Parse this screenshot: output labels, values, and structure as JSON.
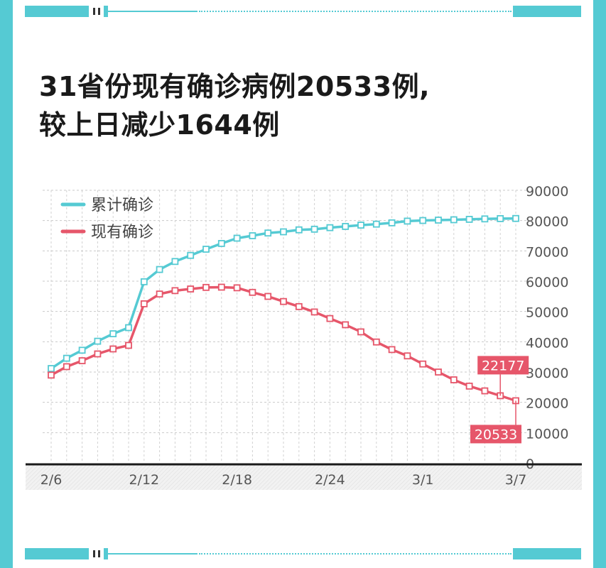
{
  "title": {
    "line1": "31省份现有确诊病例20533例,",
    "line2": "较上日减少1644例"
  },
  "colors": {
    "accent": "#55cad3",
    "cumulative": "#55cad3",
    "current": "#e6566a",
    "axis": "#1a1a1a"
  },
  "chart_data": {
    "type": "line",
    "x": [
      "2/6",
      "2/7",
      "2/8",
      "2/9",
      "2/10",
      "2/11",
      "2/12",
      "2/13",
      "2/14",
      "2/15",
      "2/16",
      "2/17",
      "2/18",
      "2/19",
      "2/20",
      "2/21",
      "2/22",
      "2/23",
      "2/24",
      "2/25",
      "2/26",
      "2/27",
      "2/28",
      "2/29",
      "3/1",
      "3/2",
      "3/3",
      "3/4",
      "3/5",
      "3/6",
      "3/7"
    ],
    "x_tick_labels": [
      "2/6",
      "2/12",
      "2/18",
      "2/24",
      "3/1",
      "3/7"
    ],
    "y_tick_labels": [
      "0",
      "10000",
      "20000",
      "30000",
      "40000",
      "50000",
      "60000",
      "70000",
      "80000",
      "90000"
    ],
    "ylim": [
      0,
      90000
    ],
    "grid": true,
    "legend_position": "top-left",
    "series": [
      {
        "name": "累计确诊",
        "color": "#55cad3",
        "values": [
          31161,
          34546,
          37198,
          40171,
          42638,
          44653,
          59804,
          63851,
          66492,
          68500,
          70548,
          72436,
          74185,
          75002,
          75891,
          76288,
          76936,
          77150,
          77658,
          78064,
          78497,
          78824,
          79251,
          79824,
          80026,
          80151,
          80270,
          80409,
          80552,
          80651,
          80695
        ]
      },
      {
        "name": "现有确诊",
        "color": "#e6566a",
        "values": [
          28985,
          31774,
          33738,
          35982,
          37626,
          38800,
          52526,
          55748,
          56873,
          57416,
          57934,
          58016,
          57805,
          56303,
          54965,
          53284,
          51606,
          49824,
          47672,
          45604,
          43258,
          39919,
          37414,
          35329,
          32652,
          30004,
          27433,
          25352,
          23784,
          22177,
          20533
        ]
      }
    ],
    "annotations": [
      {
        "label": "22177",
        "series": "现有确诊",
        "x": "3/6",
        "value": 22177
      },
      {
        "label": "20533",
        "series": "现有确诊",
        "x": "3/7",
        "value": 20533
      }
    ]
  }
}
